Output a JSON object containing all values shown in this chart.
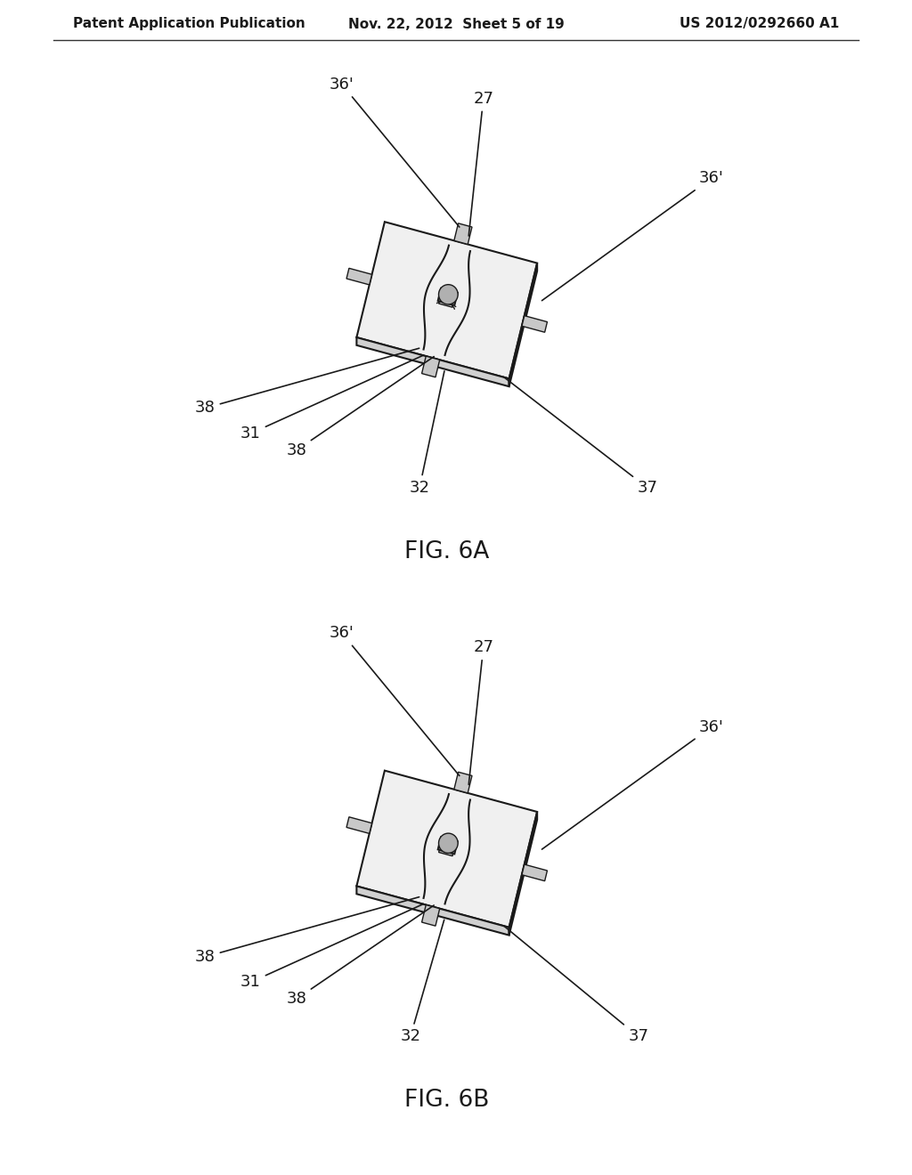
{
  "background_color": "#ffffff",
  "header": {
    "left": "Patent Application Publication",
    "center": "Nov. 22, 2012  Sheet 5 of 19",
    "right": "US 2012/0292660 A1",
    "fontsize": 11
  }
}
